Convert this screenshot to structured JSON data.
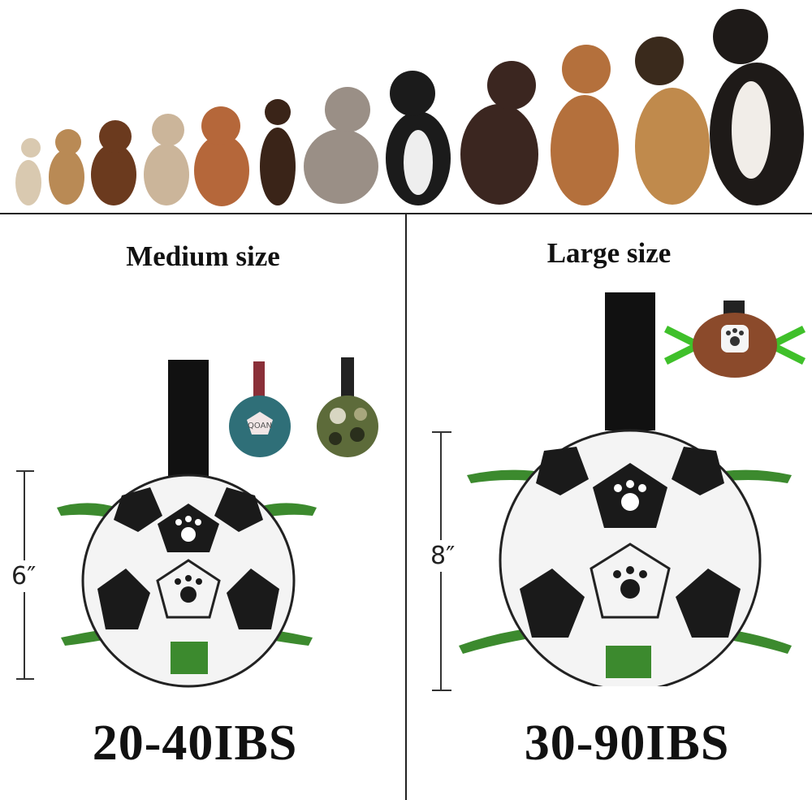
{
  "dogs_banner": {
    "dog_count": 12
  },
  "medium": {
    "title": "Medium size",
    "dimension": "6″",
    "weight_range": "20-40IBS",
    "variant_logo": "QOAN"
  },
  "large": {
    "title": "Large size",
    "dimension": "8″",
    "weight_range": "30-90IBS"
  },
  "colors": {
    "strap": "#111111",
    "tab_green": "#3c8a2e",
    "ball_black": "#1a1a1a",
    "ball_white": "#f4f4f4",
    "teal": "#2f6f78",
    "maroon": "#8a2f38",
    "football": "#8b4a2b",
    "lime": "#3fc02a"
  }
}
